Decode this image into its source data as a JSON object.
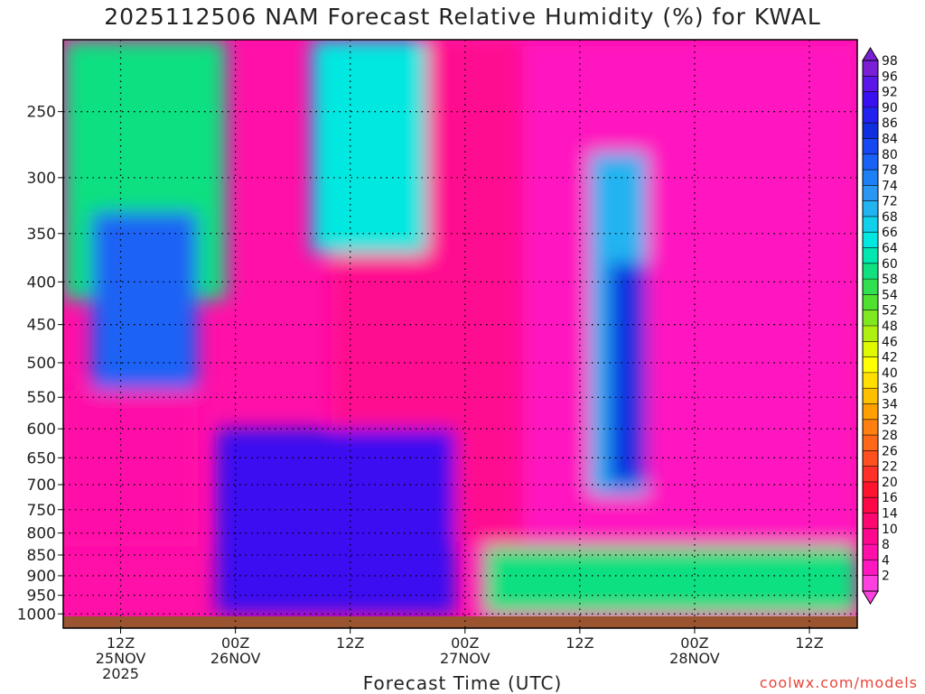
{
  "chart_data": {
    "type": "heatmap",
    "title": "2025112506 NAM Forecast Relative Humidity (%) for KWAL",
    "xlabel": "Forecast Time (UTC)",
    "ylabel": "",
    "credit": "coolwx.com/models",
    "y_scale": "log-pressure",
    "ylim": [
      1040,
      205
    ],
    "y_ticks": [
      250,
      300,
      350,
      400,
      450,
      500,
      550,
      600,
      650,
      700,
      750,
      800,
      850,
      900,
      950,
      1000
    ],
    "x_ticks": [
      {
        "hour": 12,
        "line1": "12Z",
        "line2": "25NOV",
        "line3": "2025"
      },
      {
        "hour": 24,
        "line1": "00Z",
        "line2": "26NOV",
        "line3": ""
      },
      {
        "hour": 36,
        "line1": "12Z",
        "line2": "",
        "line3": ""
      },
      {
        "hour": 48,
        "line1": "00Z",
        "line2": "27NOV",
        "line3": ""
      },
      {
        "hour": 60,
        "line1": "12Z",
        "line2": "",
        "line3": ""
      },
      {
        "hour": 72,
        "line1": "00Z",
        "line2": "28NOV",
        "line3": ""
      },
      {
        "hour": 84,
        "line1": "12Z",
        "line2": "",
        "line3": ""
      }
    ],
    "xlim": [
      6,
      89
    ],
    "grid": true,
    "colorbar_levels": [
      98,
      96,
      92,
      90,
      86,
      84,
      80,
      78,
      74,
      72,
      68,
      66,
      64,
      60,
      58,
      54,
      52,
      48,
      46,
      42,
      40,
      36,
      34,
      32,
      28,
      26,
      22,
      20,
      16,
      14,
      10,
      8,
      4,
      2
    ],
    "colorbar_colors": [
      "#7a1fd6",
      "#5a17e8",
      "#3a10f0",
      "#2222ee",
      "#1030e0",
      "#1548f0",
      "#1a62f5",
      "#1e80f5",
      "#2a98f2",
      "#22b4f0",
      "#10d0ea",
      "#00e8e0",
      "#00e8b0",
      "#10e080",
      "#30e050",
      "#50e030",
      "#80e820",
      "#b0f010",
      "#e0f800",
      "#ffff00",
      "#ffe000",
      "#ffc000",
      "#ffa000",
      "#ff8010",
      "#ff6818",
      "#ff5020",
      "#ff3028",
      "#ff1430",
      "#ff0848",
      "#ff0870",
      "#ff0890",
      "#ff10a8",
      "#ff18c0",
      "#ff40e0"
    ],
    "ground_color": "#9a5430",
    "regions": [
      {
        "name": "dry-upper-east",
        "rh": 4,
        "hours": [
          49,
          89
        ],
        "pressure": [
          205,
          1040
        ]
      },
      {
        "name": "dry-core-center",
        "rh": 10,
        "hours": [
          34,
          54
        ],
        "pressure": [
          205,
          820
        ]
      },
      {
        "name": "dry-low-west",
        "rh": 8,
        "hours": [
          6,
          20
        ],
        "pressure": [
          540,
          830
        ]
      },
      {
        "name": "moist-upper-west",
        "rh": 60,
        "hours": [
          6,
          23
        ],
        "pressure": [
          205,
          420
        ]
      },
      {
        "name": "moist-column-west",
        "rh": 80,
        "hours": [
          9,
          20
        ],
        "pressure": [
          330,
          540
        ]
      },
      {
        "name": "saturated-lower-center",
        "rh": 92,
        "hours": [
          22,
          47
        ],
        "pressure": [
          600,
          1000
        ]
      },
      {
        "name": "moist-upper-center",
        "rh": 66,
        "hours": [
          32,
          44
        ],
        "pressure": [
          205,
          370
        ]
      },
      {
        "name": "moist-band-east",
        "rh": 72,
        "hours": [
          61,
          67
        ],
        "pressure": [
          280,
          720
        ]
      },
      {
        "name": "moist-core-east",
        "rh": 86,
        "hours": [
          63,
          67
        ],
        "pressure": [
          380,
          700
        ]
      },
      {
        "name": "moist-boundary-layer-east",
        "rh": 60,
        "hours": [
          50,
          89
        ],
        "pressure": [
          830,
          1000
        ]
      }
    ]
  }
}
